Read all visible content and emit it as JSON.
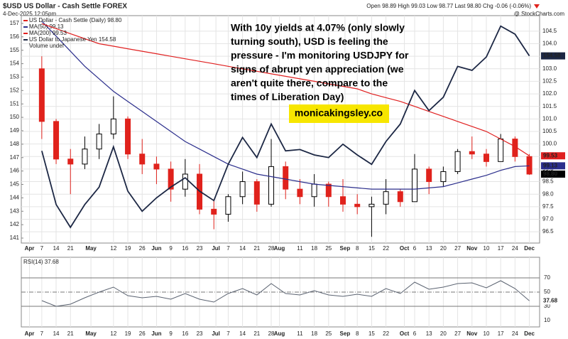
{
  "chart_data": [
    {
      "type": "candlestick",
      "title": "$USD US Dollar - Cash Settle FOREX",
      "subtitle": "4-Dec-2025 12:05pm",
      "quote": "Open 98.89 High 99.03 Low 98.77 Last 98.80 Chg -0.06 (-0.06%)",
      "credit": "@ StockCharts.com",
      "annotation_lines": [
        "With 10y yields at 4.07% (only slowly",
        "turning south), USD is feeling the",
        "pressure - I'm monitoring USDJPY for",
        "signs of abrupt yen appreciation (we",
        "aren't quite there, compare to the",
        "times of Liberation Day)"
      ],
      "watermark": "monicakingsley.co",
      "legend_extra": "Volume undef",
      "grid": true,
      "x": [
        "2025-04-07",
        "2025-04-14",
        "2025-04-21",
        "2025-04-28",
        "2025-05-05",
        "2025-05-12",
        "2025-05-19",
        "2025-05-26",
        "2025-06-02",
        "2025-06-09",
        "2025-06-16",
        "2025-06-23",
        "2025-06-30",
        "2025-07-07",
        "2025-07-14",
        "2025-07-21",
        "2025-07-28",
        "2025-08-04",
        "2025-08-11",
        "2025-08-18",
        "2025-08-25",
        "2025-09-01",
        "2025-09-08",
        "2025-09-15",
        "2025-09-22",
        "2025-09-29",
        "2025-10-06",
        "2025-10-13",
        "2025-10-20",
        "2025-10-27",
        "2025-11-03",
        "2025-11-10",
        "2025-11-17",
        "2025-11-24",
        "2025-12-01"
      ],
      "xlim": [
        "2025-03-28",
        "2025-12-06"
      ],
      "xticks": [
        {
          "value": "2025-04-01",
          "label": "Apr"
        },
        {
          "value": "2025-04-07",
          "label": "7"
        },
        {
          "value": "2025-04-14",
          "label": "14"
        },
        {
          "value": "2025-04-21",
          "label": "21"
        },
        {
          "value": "2025-05-01",
          "label": "May"
        },
        {
          "value": "2025-05-12",
          "label": "12"
        },
        {
          "value": "2025-05-19",
          "label": "19"
        },
        {
          "value": "2025-05-26",
          "label": "26"
        },
        {
          "value": "2025-06-02",
          "label": "Jun"
        },
        {
          "value": "2025-06-09",
          "label": "9"
        },
        {
          "value": "2025-06-16",
          "label": "16"
        },
        {
          "value": "2025-06-23",
          "label": "23"
        },
        {
          "value": "2025-07-01",
          "label": "Jul"
        },
        {
          "value": "2025-07-07",
          "label": "7"
        },
        {
          "value": "2025-07-14",
          "label": "14"
        },
        {
          "value": "2025-07-21",
          "label": "21"
        },
        {
          "value": "2025-07-28",
          "label": "28"
        },
        {
          "value": "2025-08-01",
          "label": "Aug"
        },
        {
          "value": "2025-08-11",
          "label": "11"
        },
        {
          "value": "2025-08-18",
          "label": "18"
        },
        {
          "value": "2025-08-25",
          "label": "25"
        },
        {
          "value": "2025-09-02",
          "label": "Sep"
        },
        {
          "value": "2025-09-08",
          "label": "8"
        },
        {
          "value": "2025-09-15",
          "label": "15"
        },
        {
          "value": "2025-09-22",
          "label": "22"
        },
        {
          "value": "2025-10-01",
          "label": "Oct"
        },
        {
          "value": "2025-10-06",
          "label": "6"
        },
        {
          "value": "2025-10-13",
          "label": "13"
        },
        {
          "value": "2025-10-20",
          "label": "20"
        },
        {
          "value": "2025-10-27",
          "label": "27"
        },
        {
          "value": "2025-11-03",
          "label": "Nov"
        },
        {
          "value": "2025-11-10",
          "label": "10"
        },
        {
          "value": "2025-11-17",
          "label": "17"
        },
        {
          "value": "2025-11-24",
          "label": "24"
        },
        {
          "value": "2025-12-01",
          "label": "Dec"
        }
      ],
      "ylim": [
        96.05,
        105.12
      ],
      "yticks": [
        96.5,
        {
          "value": 97,
          "label": "97.0"
        },
        97.5,
        {
          "value": 98,
          "label": "98.0"
        },
        98.5,
        {
          "value": 99,
          "label": "99.0"
        },
        99.5,
        {
          "value": 100,
          "label": "100.0"
        },
        100.5,
        {
          "value": 101,
          "label": "101.0"
        },
        101.5,
        {
          "value": 102,
          "label": "102.0"
        },
        102.5,
        {
          "value": 103,
          "label": "103.0"
        },
        103.5,
        {
          "value": 104,
          "label": "104.0"
        },
        104.5
      ],
      "y2lim": [
        140.63,
        157.58
      ],
      "y2ticks": [
        141,
        142,
        143,
        144,
        145,
        146,
        147,
        148,
        149,
        150,
        151,
        152,
        153,
        154,
        155,
        156,
        157
      ],
      "series": [
        {
          "name": "US Dollar - Cash Settle (Daily)",
          "color": "#000000",
          "down_color": "#e0221c",
          "open": [
            103.0,
            100.9,
            99.4,
            99.2,
            99.8,
            100.4,
            101.0,
            99.6,
            99.2,
            99.0,
            98.2,
            98.8,
            97.4,
            97.2,
            97.9,
            98.5,
            97.6,
            99.1,
            98.2,
            97.9,
            98.4,
            97.9,
            97.6,
            97.5,
            97.6,
            98.1,
            97.7,
            99.0,
            98.5,
            98.9,
            99.7,
            99.6,
            99.3,
            100.2,
            99.5
          ],
          "high": [
            103.5,
            101.0,
            99.8,
            100.3,
            100.8,
            101.9,
            101.1,
            100.2,
            99.5,
            99.3,
            99.4,
            99.2,
            97.8,
            98.0,
            98.9,
            98.6,
            100.2,
            99.3,
            98.6,
            98.8,
            98.5,
            98.6,
            98.0,
            97.9,
            98.6,
            98.2,
            99.6,
            99.1,
            99.1,
            99.8,
            100.3,
            99.8,
            100.4,
            100.3,
            99.6
          ],
          "low": [
            100.2,
            99.2,
            98.0,
            99.0,
            99.4,
            100.2,
            99.4,
            98.8,
            98.4,
            97.7,
            97.9,
            97.2,
            96.6,
            96.9,
            97.6,
            97.3,
            97.5,
            97.8,
            97.6,
            97.5,
            97.5,
            97.3,
            97.2,
            96.3,
            97.2,
            97.5,
            97.7,
            98.0,
            98.3,
            98.8,
            99.4,
            99.1,
            99.3,
            99.3,
            98.77
          ],
          "close": [
            100.9,
            99.4,
            99.2,
            99.8,
            100.4,
            101.0,
            99.6,
            99.2,
            99.0,
            98.2,
            98.8,
            97.4,
            97.2,
            97.9,
            98.5,
            97.6,
            99.1,
            98.2,
            97.9,
            98.4,
            97.9,
            97.6,
            97.5,
            97.6,
            98.1,
            97.7,
            99.0,
            98.5,
            98.9,
            99.7,
            99.6,
            99.3,
            100.2,
            99.5,
            98.8
          ],
          "last": 98.8,
          "last_label": "98.80"
        },
        {
          "name": "MA(50)",
          "color": "#2b2e8c",
          "values": [
            104.9,
            104.3,
            103.7,
            103.1,
            102.6,
            102.1,
            101.7,
            101.3,
            100.9,
            100.5,
            100.1,
            99.8,
            99.5,
            99.2,
            99.0,
            98.8,
            98.7,
            98.6,
            98.5,
            98.4,
            98.35,
            98.3,
            98.25,
            98.2,
            98.2,
            98.2,
            98.2,
            98.25,
            98.3,
            98.45,
            98.6,
            98.75,
            98.95,
            99.1,
            99.13
          ],
          "last": 99.13,
          "last_label": "99.13"
        },
        {
          "name": "MA(200)",
          "color": "#e02020",
          "values": [
            104.8,
            104.6,
            104.4,
            104.2,
            104.0,
            103.9,
            103.8,
            103.7,
            103.6,
            103.5,
            103.4,
            103.3,
            103.2,
            103.1,
            103.0,
            102.9,
            102.8,
            102.7,
            102.6,
            102.5,
            102.4,
            102.3,
            102.2,
            102.0,
            101.85,
            101.7,
            101.5,
            101.3,
            101.1,
            100.9,
            100.7,
            100.5,
            100.2,
            99.9,
            99.53
          ],
          "last": 99.53,
          "last_label": "99.53"
        },
        {
          "name": "US Dollar to Japanese Yen",
          "color": "#1c2744",
          "axis": "y2",
          "values": [
            147.5,
            143.5,
            141.8,
            143.5,
            144.8,
            147.8,
            144.5,
            143.0,
            144.0,
            144.8,
            145.5,
            144.5,
            143.8,
            146.5,
            148.5,
            147.0,
            149.5,
            147.5,
            147.6,
            147.2,
            147.0,
            148.0,
            147.2,
            146.5,
            148.2,
            149.5,
            152.0,
            150.5,
            151.5,
            153.8,
            153.5,
            154.5,
            156.8,
            156.2,
            154.58
          ],
          "last": 154.58,
          "last_label": "154.58"
        }
      ]
    },
    {
      "type": "line",
      "ylim": [
        1,
        99
      ],
      "yticks": [
        10,
        30,
        50,
        70
      ],
      "reference_lines": [
        70,
        30
      ],
      "midline": 50,
      "series": [
        {
          "name": "RSI(14)",
          "color": "#5a6270",
          "values": [
            38,
            30,
            33,
            42,
            50,
            57,
            45,
            42,
            44,
            40,
            48,
            40,
            36,
            48,
            55,
            46,
            62,
            48,
            46,
            52,
            46,
            44,
            47,
            44,
            55,
            48,
            64,
            54,
            57,
            62,
            63,
            56,
            66,
            55,
            37.68
          ],
          "last": 37.68,
          "last_label": "37.68"
        }
      ]
    }
  ]
}
